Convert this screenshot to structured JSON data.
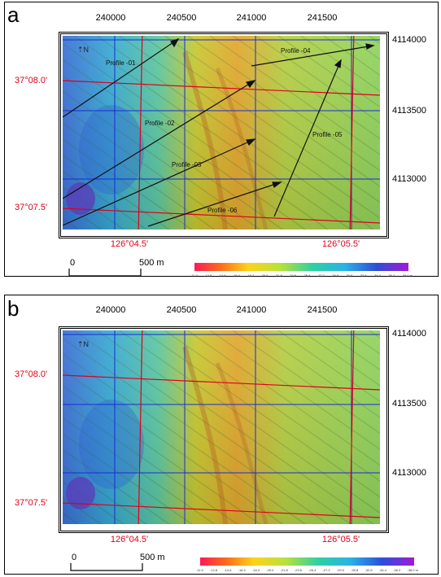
{
  "panels": [
    {
      "letter": "a",
      "utm_x": [
        "240000",
        "240500",
        "241000",
        "241500"
      ],
      "utm_y": [
        "4114000",
        "4113500",
        "4113000"
      ],
      "lat": [
        "37°08.0'",
        "37°07.5'"
      ],
      "lon": [
        "126°04.5'",
        "126°05.5'"
      ],
      "profiles": [
        "Profile -01",
        "Profile -02",
        "Profile -03",
        "Profile -04",
        "Profile -05",
        "Profile -06"
      ],
      "scale_zero": "0",
      "scale_length": "500 m",
      "colorbar_ticks": [
        "-11.0",
        "-12.8",
        "-14.6",
        "-16.4",
        "-18.2",
        "-20.0",
        "-21.8",
        "-23.6",
        "-25.4",
        "-27.2",
        "-29.0",
        "-30.8",
        "-32.6",
        "-34.4",
        "-36.2",
        "-38.0 m"
      ]
    },
    {
      "letter": "b",
      "utm_x": [
        "240000",
        "240500",
        "241000",
        "241500"
      ],
      "utm_y": [
        "4114000",
        "4113500",
        "4113000"
      ],
      "lat": [
        "37°08.0'",
        "37°07.5'"
      ],
      "lon": [
        "126°04.5'",
        "126°05.5'"
      ],
      "profiles": [],
      "scale_zero": "0",
      "scale_length": "500 m",
      "colorbar_ticks": [
        "-11.0",
        "-12.8",
        "-14.6",
        "-16.4",
        "-18.2",
        "-20.0",
        "-21.8",
        "-23.6",
        "-25.4",
        "-27.2",
        "-29.0",
        "-30.8",
        "-32.6",
        "-34.4",
        "-36.2",
        "-38.0 m"
      ]
    }
  ],
  "colors": {
    "utm_grid": "#1a2bd6",
    "geo_grid": "#e0001b"
  },
  "icons": {
    "north": "north-arrow-icon"
  }
}
